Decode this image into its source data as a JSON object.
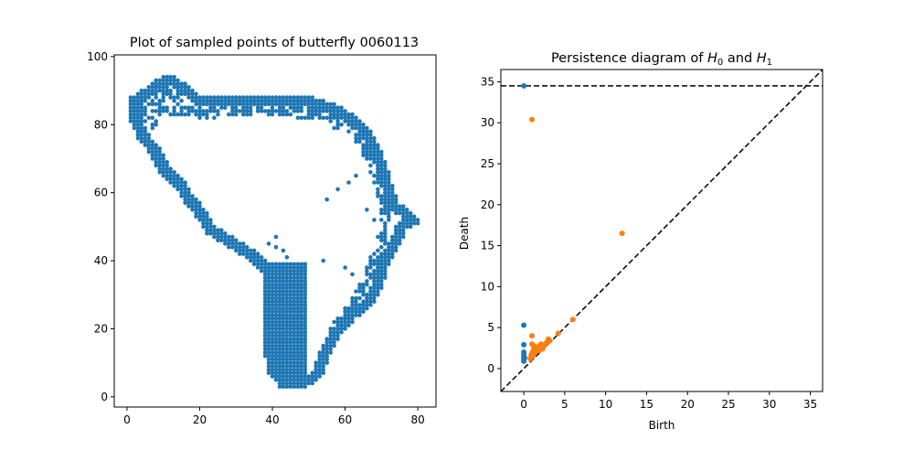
{
  "chart_data": [
    {
      "type": "scatter",
      "title": "Plot of sampled points of butterfly 0060113",
      "xlabel": "",
      "ylabel": "",
      "xlim": [
        -3.5,
        85
      ],
      "ylim": [
        -3,
        100.5
      ],
      "xticks": [
        "0",
        "20",
        "40",
        "60",
        "80"
      ],
      "yticks": [
        "0",
        "20",
        "40",
        "60",
        "80",
        "100"
      ],
      "grid": false,
      "color": "#1f77b4",
      "outline": [
        [
          1,
          88
        ],
        [
          4,
          90
        ],
        [
          8,
          93
        ],
        [
          12,
          95
        ],
        [
          15,
          93
        ],
        [
          20,
          89
        ],
        [
          30,
          89
        ],
        [
          40,
          89
        ],
        [
          52,
          88
        ],
        [
          58,
          86
        ],
        [
          64,
          82
        ],
        [
          68,
          77
        ],
        [
          71,
          70
        ],
        [
          73,
          63
        ],
        [
          75,
          57
        ],
        [
          79,
          54
        ],
        [
          81,
          51
        ],
        [
          77,
          49
        ],
        [
          75,
          44
        ],
        [
          72,
          38
        ],
        [
          70,
          31
        ],
        [
          67,
          26
        ],
        [
          63,
          23
        ],
        [
          59,
          18
        ],
        [
          56,
          12
        ],
        [
          54,
          6
        ],
        [
          50,
          3
        ],
        [
          46,
          2
        ],
        [
          42,
          3
        ],
        [
          39,
          7
        ],
        [
          38,
          12
        ],
        [
          38,
          20
        ],
        [
          38,
          30
        ],
        [
          37,
          37
        ],
        [
          34,
          40
        ],
        [
          31,
          42
        ],
        [
          28,
          44
        ],
        [
          25,
          46
        ],
        [
          22,
          48
        ],
        [
          19,
          53
        ],
        [
          16,
          57
        ],
        [
          13,
          62
        ],
        [
          9,
          66
        ],
        [
          6,
          72
        ],
        [
          3,
          76
        ],
        [
          1,
          81
        ]
      ],
      "inner_ring": [
        [
          5,
          83
        ],
        [
          10,
          84
        ],
        [
          15,
          84
        ],
        [
          22,
          83
        ],
        [
          30,
          84
        ],
        [
          38,
          85
        ],
        [
          46,
          84
        ],
        [
          54,
          83
        ],
        [
          60,
          80
        ],
        [
          65,
          74
        ],
        [
          68,
          67
        ],
        [
          70,
          60
        ],
        [
          71,
          53
        ],
        [
          70,
          46
        ],
        [
          68,
          40
        ],
        [
          66,
          34
        ],
        [
          63,
          29
        ],
        [
          60,
          24
        ],
        [
          57,
          20
        ]
      ],
      "stray_points": [
        [
          39,
          45
        ],
        [
          41,
          44
        ],
        [
          43,
          43
        ],
        [
          44,
          41
        ],
        [
          41,
          47
        ],
        [
          49,
          39
        ],
        [
          54,
          40
        ],
        [
          55,
          58
        ],
        [
          58,
          61
        ],
        [
          61,
          63
        ],
        [
          63,
          65
        ],
        [
          66,
          55
        ],
        [
          68,
          52
        ],
        [
          60,
          38
        ],
        [
          62,
          36
        ],
        [
          64,
          33
        ],
        [
          48,
          38
        ]
      ]
    },
    {
      "type": "scatter",
      "title_parts": [
        "Persistence diagram of ",
        "H",
        "0",
        " and ",
        "H",
        "1"
      ],
      "xlabel": "Birth",
      "ylabel": "Death",
      "xlim": [
        -2.8,
        36.5
      ],
      "ylim": [
        -2.8,
        36.5
      ],
      "xticks": [
        "0",
        "5",
        "10",
        "15",
        "20",
        "25",
        "30",
        "35"
      ],
      "yticks": [
        "0",
        "5",
        "10",
        "15",
        "20",
        "25",
        "30",
        "35"
      ],
      "grid": false,
      "infinity_line": 34.5,
      "series": [
        {
          "color": "#1f77b4",
          "points": [
            [
              0,
              34.5
            ],
            [
              0,
              5.3
            ],
            [
              0,
              2.9
            ],
            [
              0,
              2.0
            ],
            [
              0,
              1.7
            ],
            [
              0,
              1.4
            ],
            [
              0,
              1.1
            ],
            [
              0,
              0.9
            ],
            [
              0.1,
              1.3
            ]
          ]
        },
        {
          "color": "#ff7f0e",
          "points": [
            [
              1.0,
              30.4
            ],
            [
              12.0,
              16.5
            ],
            [
              6.0,
              6.0
            ],
            [
              4.2,
              4.3
            ],
            [
              3.0,
              3.6
            ],
            [
              2.8,
              3.2
            ],
            [
              2.1,
              3.0
            ],
            [
              1.8,
              2.7
            ],
            [
              1.2,
              2.8
            ],
            [
              1.0,
              4.0
            ],
            [
              1.0,
              3.0
            ],
            [
              1.2,
              2.3
            ],
            [
              1.5,
              2.1
            ],
            [
              1.0,
              1.9
            ],
            [
              0.9,
              1.6
            ],
            [
              1.3,
              1.8
            ],
            [
              1.6,
              2.6
            ],
            [
              2.3,
              2.4
            ],
            [
              2.6,
              2.9
            ],
            [
              3.2,
              3.4
            ],
            [
              0.8,
              1.2
            ],
            [
              1.1,
              1.5
            ],
            [
              1.9,
              2.2
            ]
          ]
        }
      ]
    }
  ]
}
